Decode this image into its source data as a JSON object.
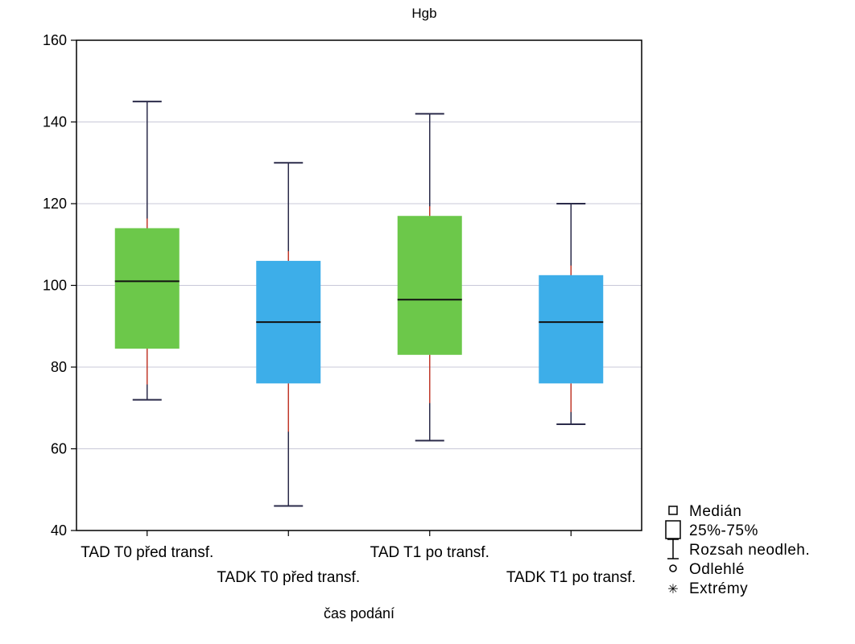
{
  "chart_data": {
    "type": "box",
    "title": "Hgb",
    "xlabel": "čas podání",
    "ylabel": "",
    "ylim": [
      40,
      160
    ],
    "yticks": [
      40,
      60,
      80,
      100,
      120,
      140,
      160
    ],
    "grid": true,
    "categories": [
      "TAD T0 před transf.",
      "TADK T0 před transf.",
      "TAD T1 po transf.",
      "TADK T1 po transf."
    ],
    "boxes": [
      {
        "min": 72,
        "q1": 84.5,
        "median": 101,
        "q3": 114,
        "max": 145,
        "color": "#6cc84a"
      },
      {
        "min": 46,
        "q1": 76,
        "median": 91,
        "q3": 106,
        "max": 130,
        "color": "#3daee9"
      },
      {
        "min": 62,
        "q1": 83,
        "median": 96.5,
        "q3": 117,
        "max": 142,
        "color": "#6cc84a"
      },
      {
        "min": 66,
        "q1": 76,
        "median": 91,
        "q3": 102.5,
        "max": 120,
        "color": "#3daee9"
      }
    ],
    "whisker_color": "#2b2b4a",
    "whisker_inner_color": "#c0392b",
    "legend_position": "bottom-right",
    "legend": [
      {
        "label": "Medián",
        "icon": "small-square-icon"
      },
      {
        "label": "25%-75%",
        "icon": "box-icon"
      },
      {
        "label": "Rozsah neodleh.",
        "icon": "whisker-icon"
      },
      {
        "label": "Odlehlé",
        "icon": "circle-icon"
      },
      {
        "label": "Extrémy",
        "icon": "asterisk-icon"
      }
    ]
  }
}
